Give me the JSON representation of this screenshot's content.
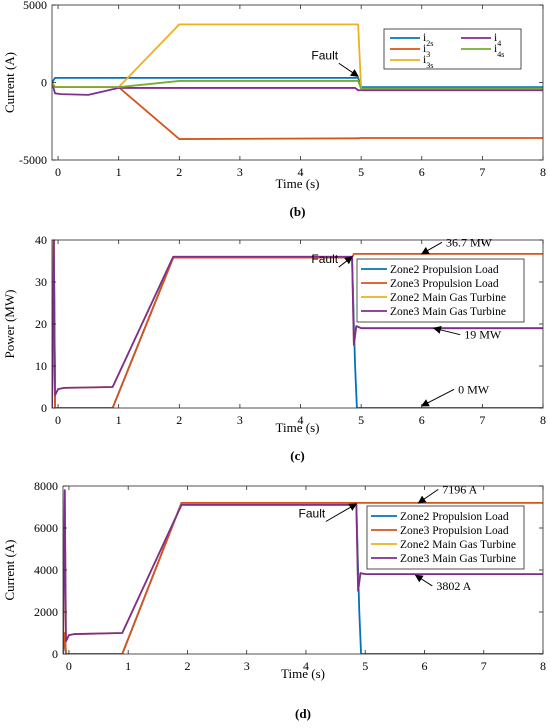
{
  "chart_data": [
    {
      "type": "line",
      "panel_label": "(b)",
      "xlabel": "Time (s)",
      "ylabel": "Current (A)",
      "xlim": [
        -0.1,
        8
      ],
      "ylim": [
        -5000,
        5000
      ],
      "xticks": [
        "0",
        "1",
        "2",
        "3",
        "4",
        "5",
        "6",
        "7",
        "8"
      ],
      "yticks": [
        "-5000",
        "0",
        "5000"
      ],
      "legend_position": "top-right",
      "legend_columns": 2,
      "series": [
        {
          "name": "i2s",
          "color": "#0072BD",
          "x": [
            -0.1,
            -0.05,
            0.05,
            1,
            2,
            4.9,
            4.95,
            5,
            8
          ],
          "y": [
            0,
            300,
            300,
            300,
            300,
            300,
            300,
            -300,
            -300
          ]
        },
        {
          "name": "i3",
          "color": "#D95319",
          "x": [
            -0.1,
            -0.05,
            0.05,
            1,
            2,
            4.9,
            4.95,
            5,
            8
          ],
          "y": [
            0,
            -300,
            -300,
            -300,
            -3650,
            -3600,
            -3600,
            -3580,
            -3580
          ]
        },
        {
          "name": "i3s",
          "color": "#EDB120",
          "x": [
            -0.1,
            -0.05,
            0.05,
            1,
            2,
            4.9,
            4.95,
            5,
            8
          ],
          "y": [
            0,
            -300,
            -300,
            -300,
            3750,
            3750,
            3750,
            -400,
            -400
          ]
        },
        {
          "name": "i4",
          "color": "#7E2F8E",
          "x": [
            -0.1,
            -0.05,
            0.05,
            0.5,
            1,
            2,
            4.9,
            4.95,
            5,
            8
          ],
          "y": [
            0,
            -700,
            -750,
            -800,
            -350,
            -350,
            -350,
            -500,
            -500,
            -500
          ]
        },
        {
          "name": "i4s",
          "color": "#77AC30",
          "x": [
            -0.1,
            -0.05,
            0.05,
            1,
            2,
            4.9,
            4.95,
            5,
            8
          ],
          "y": [
            0,
            -300,
            -300,
            -300,
            100,
            100,
            100,
            -400,
            -400
          ]
        }
      ],
      "legend_labels": [
        {
          "base": "i",
          "sub": "2s"
        },
        {
          "base": "i",
          "sub": "3"
        },
        {
          "base": "i",
          "sub": "3s"
        },
        {
          "base": "i",
          "sub": "4"
        },
        {
          "base": "i",
          "sub": "4s"
        }
      ],
      "annotations": [
        {
          "text": "Fault",
          "x": 4.4,
          "y": 1500,
          "arrow_to": [
            4.95,
            400
          ]
        }
      ]
    },
    {
      "type": "line",
      "panel_label": "(c)",
      "xlabel": "Time (s)",
      "ylabel": "Power (MW)",
      "xlim": [
        -0.1,
        8
      ],
      "ylim": [
        0,
        40
      ],
      "xticks": [
        "0",
        "1",
        "2",
        "3",
        "4",
        "5",
        "6",
        "7",
        "8"
      ],
      "yticks": [
        "0",
        "10",
        "20",
        "30",
        "40"
      ],
      "legend_position": "middle-right",
      "series": [
        {
          "name": "Zone2 Propulsion Load",
          "color": "#0072BD",
          "x": [
            -0.1,
            -0.07,
            -0.05,
            0.05,
            0.9,
            1.9,
            4.85,
            4.88,
            4.9,
            4.93,
            8
          ],
          "y": [
            0,
            40,
            0,
            0,
            0,
            35.8,
            35.8,
            20,
            10,
            0,
            0
          ]
        },
        {
          "name": "Zone3 Propulsion Load",
          "color": "#D95319",
          "x": [
            -0.1,
            -0.07,
            -0.05,
            0.05,
            0.9,
            1.9,
            4.85,
            4.88,
            4.92,
            8
          ],
          "y": [
            0,
            40,
            0,
            0,
            0,
            35.8,
            35.8,
            36.7,
            36.7,
            36.7
          ]
        },
        {
          "name": "Zone2 Main Gas Turbine",
          "color": "#EDB120",
          "x": [
            -0.1,
            -0.07,
            -0.05,
            0,
            0.1,
            0.9,
            1.9,
            4.85,
            4.88,
            4.92,
            5.0,
            8
          ],
          "y": [
            0,
            40,
            3,
            4.5,
            4.8,
            5,
            36,
            36,
            15,
            19.5,
            19,
            19
          ]
        },
        {
          "name": "Zone3 Main Gas Turbine",
          "color": "#7E2F8E",
          "x": [
            -0.1,
            -0.07,
            -0.05,
            0,
            0.1,
            0.9,
            1.9,
            4.85,
            4.88,
            4.92,
            5.0,
            8
          ],
          "y": [
            0,
            40,
            3,
            4.5,
            4.8,
            5,
            36,
            36,
            15,
            19.5,
            19,
            19
          ]
        }
      ],
      "annotations": [
        {
          "text": "36.7 MW",
          "x": 6.4,
          "y": 38.5,
          "arrow_to": [
            6.0,
            36.7
          ]
        },
        {
          "text": "Fault",
          "x": 4.4,
          "y": 34.5,
          "arrow_to": [
            4.85,
            36
          ]
        },
        {
          "text": "19 MW",
          "x": 6.7,
          "y": 16.5,
          "arrow_to": [
            6.2,
            19
          ]
        },
        {
          "text": "0 MW",
          "x": 6.6,
          "y": 3.5,
          "arrow_to": [
            6.0,
            0.5
          ]
        }
      ]
    },
    {
      "type": "line",
      "panel_label": "(d)",
      "xlabel": "Time (s)",
      "ylabel": "Current (A)",
      "xlim": [
        -0.1,
        8
      ],
      "ylim": [
        0,
        8000
      ],
      "xticks": [
        "0",
        "1",
        "2",
        "3",
        "4",
        "5",
        "6",
        "7",
        "8"
      ],
      "yticks": [
        "0",
        "2000",
        "4000",
        "6000",
        "8000"
      ],
      "legend_position": "middle-right",
      "series": [
        {
          "name": "Zone2 Propulsion Load",
          "color": "#0072BD",
          "x": [
            -0.1,
            -0.07,
            -0.05,
            0.05,
            0.9,
            1.9,
            4.85,
            4.88,
            4.9,
            4.93,
            8
          ],
          "y": [
            0,
            1000,
            0,
            0,
            0,
            7196,
            7196,
            4000,
            2000,
            0,
            0
          ]
        },
        {
          "name": "Zone3 Propulsion Load",
          "color": "#D95319",
          "x": [
            -0.1,
            -0.07,
            -0.05,
            0.05,
            0.9,
            1.9,
            4.85,
            4.9,
            8
          ],
          "y": [
            0,
            1000,
            0,
            0,
            0,
            7196,
            7196,
            7196,
            7196
          ]
        },
        {
          "name": "Zone2 Main Gas Turbine",
          "color": "#EDB120",
          "x": [
            -0.1,
            -0.07,
            -0.05,
            0,
            0.1,
            0.9,
            1.9,
            4.85,
            4.88,
            4.92,
            5.0,
            8
          ],
          "y": [
            0,
            7800,
            600,
            900,
            950,
            1000,
            7100,
            7100,
            3000,
            3850,
            3802,
            3802
          ]
        },
        {
          "name": "Zone3 Main Gas Turbine",
          "color": "#7E2F8E",
          "x": [
            -0.1,
            -0.07,
            -0.05,
            0,
            0.1,
            0.9,
            1.9,
            4.85,
            4.88,
            4.92,
            5.0,
            8
          ],
          "y": [
            0,
            7800,
            600,
            900,
            950,
            1000,
            7100,
            7100,
            3000,
            3850,
            3802,
            3802
          ]
        }
      ],
      "annotations": [
        {
          "text": "7196 A",
          "x": 6.3,
          "y": 7650,
          "arrow_to": [
            5.9,
            7196
          ]
        },
        {
          "text": "Fault",
          "x": 4.1,
          "y": 6500,
          "arrow_to": [
            4.85,
            7150
          ]
        },
        {
          "text": "3802 A",
          "x": 6.2,
          "y": 3050,
          "arrow_to": [
            5.85,
            3750
          ]
        }
      ]
    }
  ]
}
